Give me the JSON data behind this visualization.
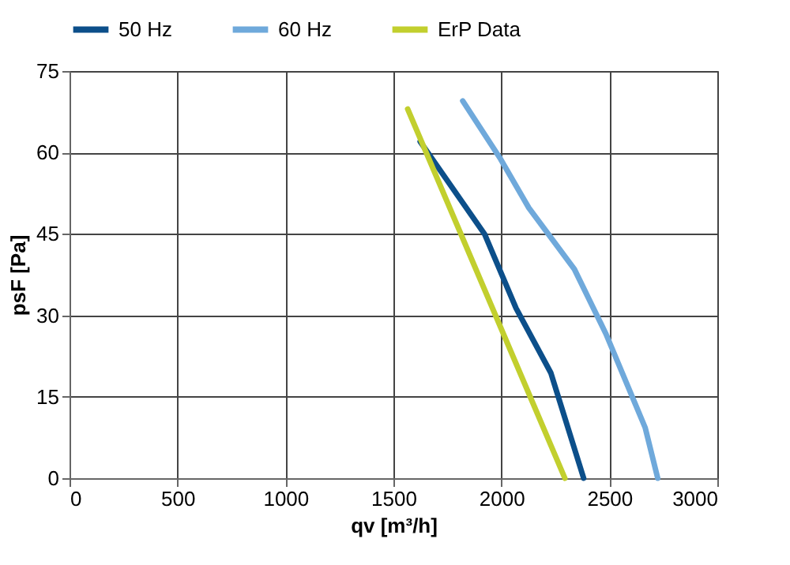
{
  "chart_data": {
    "type": "line",
    "xlabel": "qv [m³/h]",
    "ylabel": "psF [Pa]",
    "xlim": [
      0,
      3000
    ],
    "xticks": [
      0,
      500,
      1000,
      1500,
      2000,
      2500,
      3000
    ],
    "ylim": [
      0,
      75
    ],
    "yticks": [
      0,
      15,
      30,
      45,
      60,
      75
    ],
    "grid": true,
    "legend": "top",
    "marker": "none",
    "line_style": "solid",
    "series": [
      {
        "name": "50 Hz",
        "color": "#0c4f8a",
        "x": [
          1624,
          1923,
          2068,
          2229,
          2381
        ],
        "values": [
          62,
          44.9,
          31.3,
          19.4,
          0
        ]
      },
      {
        "name": "60 Hz",
        "color": "#6fa9db",
        "x": [
          1821,
          1996,
          2127,
          2338,
          2484,
          2666,
          2724
        ],
        "values": [
          69.5,
          58.8,
          49.8,
          38.5,
          26.6,
          9.3,
          0
        ]
      },
      {
        "name": "ErP Data",
        "color": "#c2cf2e",
        "x": [
          1566,
          2294
        ],
        "values": [
          68,
          0
        ]
      }
    ]
  }
}
